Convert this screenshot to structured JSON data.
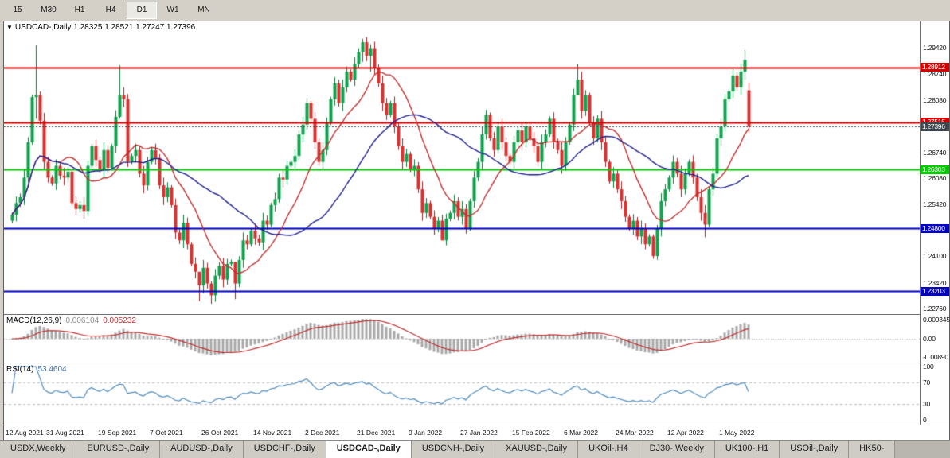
{
  "toolbar": {
    "timeframes": [
      "15",
      "M30",
      "H1",
      "H4",
      "D1",
      "W1",
      "MN"
    ],
    "active": "D1"
  },
  "chart_title": {
    "collapse_icon": "▼",
    "symbol": "USDCAD-,Daily",
    "ohlc": "1.28325 1.28521 1.27247 1.27396"
  },
  "chart_data": {
    "type": "candlestick",
    "symbol": "USDCAD-",
    "timeframe": "Daily",
    "last_bar": {
      "open": 1.28325,
      "high": 1.28521,
      "low": 1.27247,
      "close": 1.27396
    },
    "x_labels": [
      "12 Aug 2021",
      "31 Aug 2021",
      "19 Sep 2021",
      "7 Oct 2021",
      "26 Oct 2021",
      "14 Nov 2021",
      "2 Dec 2021",
      "21 Dec 2021",
      "9 Jan 2022",
      "27 Jan 2022",
      "15 Feb 2022",
      "6 Mar 2022",
      "24 Mar 2022",
      "12 Apr 2022",
      "1 May 2022"
    ],
    "bars_per_label": 13,
    "y_axis": {
      "ticks": [
        "1.29420",
        "1.28740",
        "1.28080",
        "1.27420",
        "1.26740",
        "1.26080",
        "1.25420",
        "1.24760",
        "1.24100",
        "1.23420",
        "1.22760"
      ],
      "min": 1.2262,
      "max": 1.3008
    },
    "levels": [
      {
        "name": "resistance-upper",
        "price": 1.28912,
        "label": "1.28912",
        "color": "#D40000",
        "style": "solid"
      },
      {
        "name": "resistance-lower",
        "price": 1.27515,
        "label": "1.27515",
        "color": "#D40000",
        "style": "solid"
      },
      {
        "name": "current-price",
        "price": 1.27396,
        "label": "1.27396",
        "color": "#40484F",
        "style": "dotted"
      },
      {
        "name": "pivot-green",
        "price": 1.26303,
        "label": "1.26303",
        "color": "#00CC00",
        "style": "solid"
      },
      {
        "name": "support-upper",
        "price": 1.248,
        "label": "1.24800",
        "color": "#0000C8",
        "style": "solid"
      },
      {
        "name": "support-lower",
        "price": 1.23203,
        "label": "1.23203",
        "color": "#0000C8",
        "style": "solid"
      }
    ],
    "first_open": 1.25,
    "closes": [
      1.2515,
      1.2545,
      1.256,
      1.261,
      1.27,
      1.2815,
      1.282,
      1.2755,
      1.265,
      1.261,
      1.2595,
      1.264,
      1.2615,
      1.261,
      1.2625,
      1.2545,
      1.253,
      1.254,
      1.2525,
      1.264,
      1.269,
      1.2655,
      1.263,
      1.268,
      1.2635,
      1.269,
      1.2765,
      1.282,
      1.281,
      1.265,
      1.2665,
      1.268,
      1.262,
      1.259,
      1.265,
      1.268,
      1.266,
      1.259,
      1.256,
      1.2585,
      1.254,
      1.247,
      1.245,
      1.2495,
      1.244,
      1.239,
      1.237,
      1.2335,
      1.238,
      1.234,
      1.231,
      1.236,
      1.2385,
      1.235,
      1.239,
      1.2395,
      1.234,
      1.24,
      1.245,
      1.244,
      1.2475,
      1.2455,
      1.2445,
      1.25,
      1.249,
      1.254,
      1.2555,
      1.261,
      1.2605,
      1.264,
      1.265,
      1.2665,
      1.272,
      1.2745,
      1.28,
      1.276,
      1.27,
      1.265,
      1.268,
      1.275,
      1.281,
      1.285,
      1.28,
      1.284,
      1.288,
      1.286,
      1.29,
      1.293,
      1.2955,
      1.292,
      1.294,
      1.289,
      1.285,
      1.28,
      1.277,
      1.28,
      1.274,
      1.269,
      1.265,
      1.267,
      1.263,
      1.264,
      1.258,
      1.252,
      1.2545,
      1.251,
      1.248,
      1.25,
      1.245,
      1.2505,
      1.252,
      1.255,
      1.251,
      1.253,
      1.248,
      1.255,
      1.261,
      1.265,
      1.272,
      1.277,
      1.271,
      1.268,
      1.274,
      1.27,
      1.2665,
      1.265,
      1.27,
      1.273,
      1.27,
      1.274,
      1.271,
      1.269,
      1.265,
      1.27,
      1.272,
      1.276,
      1.27,
      1.268,
      1.264,
      1.27,
      1.2745,
      1.282,
      1.286,
      1.278,
      1.282,
      1.275,
      1.271,
      1.276,
      1.27,
      1.265,
      1.26,
      1.262,
      1.258,
      1.255,
      1.251,
      1.248,
      1.25,
      1.246,
      1.248,
      1.244,
      1.246,
      1.241,
      1.248,
      1.255,
      1.258,
      1.261,
      1.265,
      1.262,
      1.258,
      1.262,
      1.265,
      1.261,
      1.256,
      1.252,
      1.249,
      1.258,
      1.262,
      1.271,
      1.274,
      1.281,
      1.283,
      1.287,
      1.284,
      1.288,
      1.291,
      1.27396
    ],
    "wick_overrides": {
      "6": [
        1.2948,
        1.276
      ],
      "27": [
        1.2896,
        1.276
      ],
      "47": [
        1.236,
        1.2295
      ],
      "50": [
        1.2345,
        1.2288
      ],
      "56": [
        1.2395,
        1.23
      ],
      "88": [
        1.2964,
        1.2905
      ],
      "90": [
        1.295,
        1.288
      ],
      "108": [
        1.2515,
        1.245
      ],
      "142": [
        1.29,
        1.282
      ],
      "161": [
        1.2465,
        1.2403
      ],
      "174": [
        1.254,
        1.2458
      ],
      "184": [
        1.2935,
        1.286
      ],
      "185": [
        1.28521,
        1.27247
      ]
    },
    "open_overrides": {
      "185": 1.28325
    },
    "moving_averages": [
      {
        "name": "ma-fast",
        "period": 13,
        "color": "#C03030"
      },
      {
        "name": "ma-slow",
        "period": 34,
        "color": "#20208F"
      }
    ],
    "colors": {
      "bull": "#0FA24D",
      "bear": "#D93030",
      "bull_wick": "#077A38",
      "bear_wick": "#A32222",
      "background": "#FFFFFF"
    },
    "indicators": {
      "macd": {
        "label": "MACD(12,26,9)",
        "main_value": "0.006104",
        "signal_value": "0.005232",
        "params": [
          12,
          26,
          9
        ],
        "y_ticks": [
          "0.009345",
          "0.00",
          "-0.00890"
        ],
        "y_range": [
          -0.0115,
          0.0115
        ],
        "histogram_color": "#A9A9A9",
        "signal_color": "#C03030"
      },
      "rsi": {
        "label": "RSI(14)",
        "value": "53.4604",
        "period": 14,
        "y_ticks": [
          "100",
          "70",
          "30",
          "0"
        ],
        "levels": [
          70,
          30
        ],
        "line_color": "#4E8CC2",
        "level_color": "#BBBBBB"
      }
    }
  },
  "tabs": [
    {
      "label": "USDX,Weekly",
      "active": false
    },
    {
      "label": "EURUSD-,Daily",
      "active": false
    },
    {
      "label": "AUDUSD-,Daily",
      "active": false
    },
    {
      "label": "USDCHF-,Daily",
      "active": false
    },
    {
      "label": "USDCAD-,Daily",
      "active": true
    },
    {
      "label": "USDCNH-,Daily",
      "active": false
    },
    {
      "label": "XAUUSD-,Daily",
      "active": false
    },
    {
      "label": "UKOil-,H4",
      "active": false
    },
    {
      "label": "DJ30-,Weekly",
      "active": false
    },
    {
      "label": "UK100-,H1",
      "active": false
    },
    {
      "label": "USOil-,Daily",
      "active": false
    },
    {
      "label": "HK50-",
      "active": false
    }
  ]
}
